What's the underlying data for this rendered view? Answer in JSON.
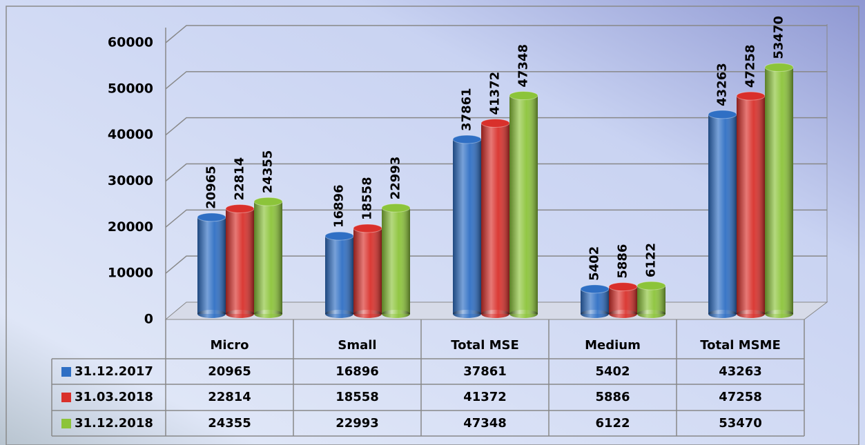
{
  "chart_data": {
    "type": "bar",
    "categories": [
      "Micro",
      "Small",
      "Total MSE",
      "Medium",
      "Total MSME"
    ],
    "series": [
      {
        "name": "31.12.2017",
        "color": "#2f6fc4",
        "values": [
          20965,
          16896,
          37861,
          5402,
          43263
        ]
      },
      {
        "name": "31.03.2018",
        "color": "#d9302b",
        "values": [
          22814,
          18558,
          41372,
          5886,
          47258
        ]
      },
      {
        "name": "31.12.2018",
        "color": "#8cc43a",
        "values": [
          24355,
          22993,
          47348,
          6122,
          53470
        ]
      }
    ],
    "ylim": [
      0,
      60000
    ],
    "yticks": [
      0,
      10000,
      20000,
      30000,
      40000,
      50000,
      60000
    ],
    "grid": true
  }
}
